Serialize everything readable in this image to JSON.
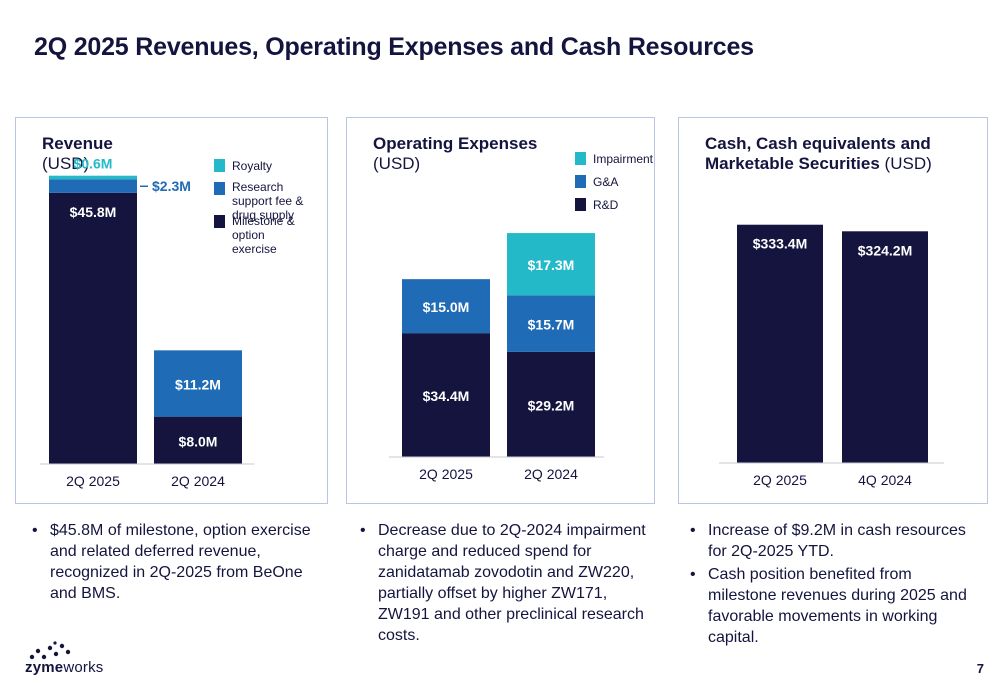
{
  "title": "2Q 2025 Revenues, Operating Expenses and Cash Resources",
  "colors": {
    "navy": "#14143f",
    "blue": "#1f6bb5",
    "teal": "#24b9c9",
    "border": "#b9c6e3"
  },
  "revenue": {
    "heading": "Revenue",
    "unit": "(USD)",
    "legend": [
      {
        "label": "Royalty",
        "color": "#24b9c9"
      },
      {
        "label": "Research support fee & drug supply",
        "color": "#1f6bb5"
      },
      {
        "label": "Milestone & option exercise",
        "color": "#14143f"
      }
    ],
    "bullets": [
      "$45.8M of milestone, option exercise and related deferred revenue, recognized in 2Q-2025 from BeOne and BMS."
    ]
  },
  "opex": {
    "heading": "Operating Expenses",
    "unit": "(USD)",
    "legend": [
      {
        "label": "Impairment",
        "color": "#24b9c9"
      },
      {
        "label": "G&A",
        "color": "#1f6bb5"
      },
      {
        "label": "R&D",
        "color": "#14143f"
      }
    ],
    "bullets": [
      "Decrease due to 2Q-2024 impairment charge and reduced spend for zanidatamab zovodotin and ZW220, partially offset by higher ZW171, ZW191 and other preclinical research costs."
    ]
  },
  "cash": {
    "heading": "Cash, Cash equivalents and Marketable Securities",
    "unit": "(USD)",
    "bullets": [
      "Increase of $9.2M in cash resources for 2Q-2025 YTD.",
      "Cash position benefited from milestone revenues during 2025 and favorable movements in working capital."
    ]
  },
  "footer": {
    "logo_prefix": "zyme",
    "logo_suffix": "works",
    "page_number": "7"
  },
  "chart_data": [
    {
      "type": "bar",
      "stacked": true,
      "categories": [
        "2Q 2025",
        "2Q 2024"
      ],
      "series": [
        {
          "name": "Milestone & option exercise",
          "color": "#14143f",
          "values": [
            45.8,
            8.0
          ],
          "labels": [
            "$45.8M",
            "$8.0M"
          ]
        },
        {
          "name": "Research support fee & drug supply",
          "color": "#1f6bb5",
          "values": [
            2.3,
            11.2
          ],
          "labels": [
            "$2.3M",
            "$11.2M"
          ]
        },
        {
          "name": "Royalty",
          "color": "#24b9c9",
          "values": [
            0.6,
            0
          ],
          "labels": [
            "$0.6M",
            ""
          ]
        }
      ],
      "ylim": [
        0,
        50
      ]
    },
    {
      "type": "bar",
      "stacked": true,
      "categories": [
        "2Q 2025",
        "2Q 2024"
      ],
      "series": [
        {
          "name": "R&D",
          "color": "#14143f",
          "values": [
            34.4,
            29.2
          ],
          "labels": [
            "$34.4M",
            "$29.2M"
          ]
        },
        {
          "name": "G&A",
          "color": "#1f6bb5",
          "values": [
            15.0,
            15.7
          ],
          "labels": [
            "$15.0M",
            "$15.7M"
          ]
        },
        {
          "name": "Impairment",
          "color": "#24b9c9",
          "values": [
            0,
            17.3
          ],
          "labels": [
            "",
            "$17.3M"
          ]
        }
      ],
      "ylim": [
        0,
        65
      ]
    },
    {
      "type": "bar",
      "stacked": false,
      "categories": [
        "2Q 2025",
        "4Q 2024"
      ],
      "series": [
        {
          "name": "",
          "color": "#14143f",
          "values": [
            333.4,
            324.2
          ],
          "labels": [
            "$333.4M",
            "$324.2M"
          ]
        }
      ],
      "ylim": [
        0,
        340
      ]
    }
  ]
}
